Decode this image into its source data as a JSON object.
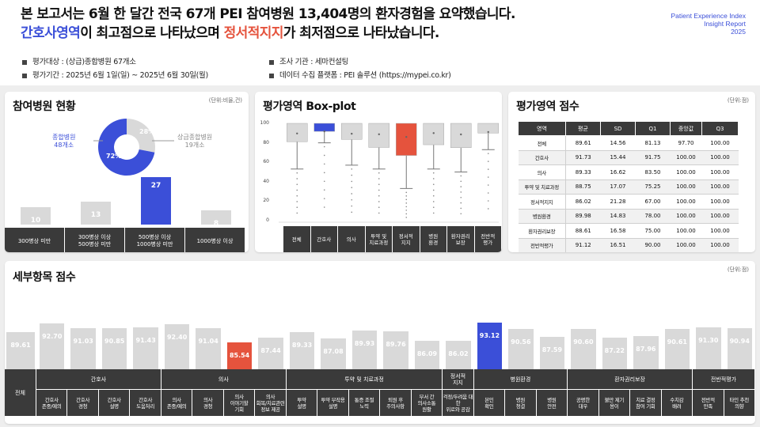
{
  "header": {
    "line1": "본 보고서는 6월 한 달간 전국 67개 PEI 참여병원 13,404명의 환자경험을 요약했습니다.",
    "line2_a": "간호사영역",
    "line2_b": "이 최고점으로 나타났으며 ",
    "line2_c": "정서적지지",
    "line2_d": "가 최저점으로 나타났습니다."
  },
  "brand": {
    "line1": "Patient Experience Index",
    "line2": "Insight Report",
    "line3": "2025"
  },
  "meta": {
    "target": "평가대상 : (상급)종합병원 67개소",
    "period": "평가기간 : 2025년 6월 1일(일) ~ 2025년 6월 30일(월)",
    "agency": "조사 기관 : 세마컨설팅",
    "platform": "데이터 수집 플랫폼 : PEI 솔루션 (https://mypei.co.kr)"
  },
  "colors": {
    "highlight_blue": "#3b4fd8",
    "highlight_red": "#e5533d",
    "bar_gray": "#d9d9d9",
    "header_dark": "#3a3a3a"
  },
  "participation": {
    "title": "참여병원 현황",
    "unit": "(단위:비율,건)",
    "donut": {
      "general_label": "종합병원",
      "general_count": "48개소",
      "general_pct": "72%",
      "tertiary_label": "상급종합병원",
      "tertiary_count": "19개소",
      "tertiary_pct": "28%",
      "general_value": 72,
      "tertiary_value": 28
    },
    "bars": [
      {
        "label": "300병상 미만",
        "value": 10,
        "display": "10"
      },
      {
        "label": "300병상 이상\n500병상 미만",
        "value": 13,
        "display": "13"
      },
      {
        "label": "500병상 이상\n1000병상 미만",
        "value": 27,
        "display": "27"
      },
      {
        "label": "1000병상 이상",
        "value": 8,
        "display": "8"
      }
    ]
  },
  "boxplot": {
    "title": "평가영역 Box-plot",
    "yticks": [
      "100",
      "80",
      "60",
      "40",
      "20",
      "0"
    ],
    "categories": [
      "전체",
      "간호사",
      "의사",
      "투약 및\n치료과정",
      "정서적\n지지",
      "병원\n환경",
      "환자권리\n보장",
      "전반적\n평가"
    ]
  },
  "chart_data": [
    {
      "type": "pie",
      "title": "참여병원 현황",
      "categories": [
        "종합병원",
        "상급종합병원"
      ],
      "values": [
        72,
        28
      ]
    },
    {
      "type": "bar",
      "title": "참여병원 현황",
      "categories": [
        "300병상 미만",
        "300병상 이상 500병상 미만",
        "500병상 이상 1000병상 미만",
        "1000병상 이상"
      ],
      "values": [
        10,
        13,
        27,
        8
      ]
    },
    {
      "type": "box",
      "title": "평가영역 Box-plot",
      "ylim": [
        0,
        100
      ],
      "categories": [
        "전체",
        "간호사",
        "의사",
        "투약 및 치료과정",
        "정서적 지지",
        "병원 환경",
        "환자권리 보장",
        "전반적 평가"
      ],
      "series": [
        {
          "q1": 81.13,
          "median": 97.7,
          "q3": 100,
          "mean": 89.61,
          "whisker_low": 53,
          "max": 100
        },
        {
          "q1": 91.75,
          "median": 100,
          "q3": 100,
          "mean": 91.73,
          "whisker_low": 80,
          "max": 100
        },
        {
          "q1": 83.5,
          "median": 100,
          "q3": 100,
          "mean": 89.33,
          "whisker_low": 57,
          "max": 100
        },
        {
          "q1": 75.25,
          "median": 100,
          "q3": 100,
          "mean": 88.75,
          "whisker_low": 53,
          "max": 100
        },
        {
          "q1": 67,
          "median": 100,
          "q3": 100,
          "mean": 86.02,
          "whisker_low": 33,
          "max": 100
        },
        {
          "q1": 78,
          "median": 100,
          "q3": 100,
          "mean": 89.98,
          "whisker_low": 53,
          "max": 100
        },
        {
          "q1": 75,
          "median": 100,
          "q3": 100,
          "mean": 88.61,
          "whisker_low": 50,
          "max": 100
        },
        {
          "q1": 90,
          "median": 100,
          "q3": 100,
          "mean": 91.12,
          "whisker_low": 73,
          "max": 100
        }
      ]
    },
    {
      "type": "bar",
      "title": "세부항목 점수",
      "categories": [
        "전체",
        "간호사 존중/예의",
        "간호사 경청",
        "간호사 설명",
        "간호사 도움처리",
        "의사 존중/예의",
        "의사 경청",
        "의사 이야기할 기회",
        "의사 회복/치료관련 정보 제공",
        "투약 설명",
        "투약 부작용 설명",
        "통증 조절 노력",
        "퇴원 후 주의사항",
        "부서 간 의사소통 원활",
        "걱정/두려움 대한 위로와 공감",
        "본인 확인",
        "병원 청결",
        "병원 안전",
        "공평한 대우",
        "불만 제기 용이",
        "치료 결정 참여 기회",
        "수치감 배려",
        "전반적 만족",
        "타인 추천 의향"
      ],
      "values": [
        89.61,
        92.7,
        91.03,
        90.85,
        91.43,
        92.4,
        91.04,
        85.54,
        87.44,
        89.33,
        87.08,
        89.93,
        89.76,
        86.09,
        86.02,
        93.12,
        90.56,
        87.59,
        90.6,
        87.22,
        87.96,
        90.61,
        91.3,
        90.94
      ],
      "ylim": [
        75,
        95
      ]
    }
  ],
  "scores": {
    "title": "평가영역 점수",
    "unit": "(단위:점)",
    "headers": [
      "영역",
      "평균",
      "SD",
      "Q1",
      "중앙값",
      "Q3"
    ],
    "rows": [
      [
        "전체",
        "89.61",
        "14.56",
        "81.13",
        "97.70",
        "100.00"
      ],
      [
        "간호사",
        "91.73",
        "15.44",
        "91.75",
        "100.00",
        "100.00"
      ],
      [
        "의사",
        "89.33",
        "16.62",
        "83.50",
        "100.00",
        "100.00"
      ],
      [
        "투약 및 치료과정",
        "88.75",
        "17.07",
        "75.25",
        "100.00",
        "100.00"
      ],
      [
        "정서적지지",
        "86.02",
        "21.28",
        "67.00",
        "100.00",
        "100.00"
      ],
      [
        "병원환경",
        "89.98",
        "14.83",
        "78.00",
        "100.00",
        "100.00"
      ],
      [
        "환자권리보장",
        "88.61",
        "16.58",
        "75.00",
        "100.00",
        "100.00"
      ],
      [
        "전반적평가",
        "91.12",
        "16.51",
        "90.00",
        "100.00",
        "100.00"
      ]
    ]
  },
  "detail": {
    "title": "세부항목 점수",
    "unit": "(단위:점)",
    "total_label": "전체",
    "groups": [
      {
        "label": "간호사",
        "span": 4
      },
      {
        "label": "의사",
        "span": 4
      },
      {
        "label": "투약 및 치료과정",
        "span": 5
      },
      {
        "label": "정서적\n지지",
        "span": 1
      },
      {
        "label": "병원환경",
        "span": 3
      },
      {
        "label": "환자권리보장",
        "span": 4
      },
      {
        "label": "전반적평가",
        "span": 2
      }
    ],
    "items": [
      {
        "label": "간호사\n존중/예의",
        "value": "92.70"
      },
      {
        "label": "간호사\n경청",
        "value": "91.03"
      },
      {
        "label": "간호사\n설명",
        "value": "90.85"
      },
      {
        "label": "간호사\n도움처리",
        "value": "91.43"
      },
      {
        "label": "의사\n존중/예의",
        "value": "92.40"
      },
      {
        "label": "의사\n경청",
        "value": "91.04"
      },
      {
        "label": "의사\n이야기할\n기회",
        "value": "85.54"
      },
      {
        "label": "의사\n회복/치료관련\n정보 제공",
        "value": "87.44"
      },
      {
        "label": "투약\n설명",
        "value": "89.33"
      },
      {
        "label": "투약 부작용\n설명",
        "value": "87.08"
      },
      {
        "label": "통증 조절\n노력",
        "value": "89.93"
      },
      {
        "label": "퇴원 후\n주의사항",
        "value": "89.76"
      },
      {
        "label": "부서 간\n의사소통\n원활",
        "value": "86.09"
      },
      {
        "label": "걱정/두려움 대한\n위로와 공감",
        "value": "86.02"
      },
      {
        "label": "본인\n확인",
        "value": "93.12"
      },
      {
        "label": "병원\n청결",
        "value": "90.56"
      },
      {
        "label": "병원\n안전",
        "value": "87.59"
      },
      {
        "label": "공평한\n대우",
        "value": "90.60"
      },
      {
        "label": "불만 제기\n용이",
        "value": "87.22"
      },
      {
        "label": "치료 결정\n참여 기회",
        "value": "87.96"
      },
      {
        "label": "수치감\n배려",
        "value": "90.61"
      },
      {
        "label": "전반적\n만족",
        "value": "91.30"
      },
      {
        "label": "타인 추천\n의향",
        "value": "90.94"
      }
    ],
    "total_value": "89.61"
  }
}
